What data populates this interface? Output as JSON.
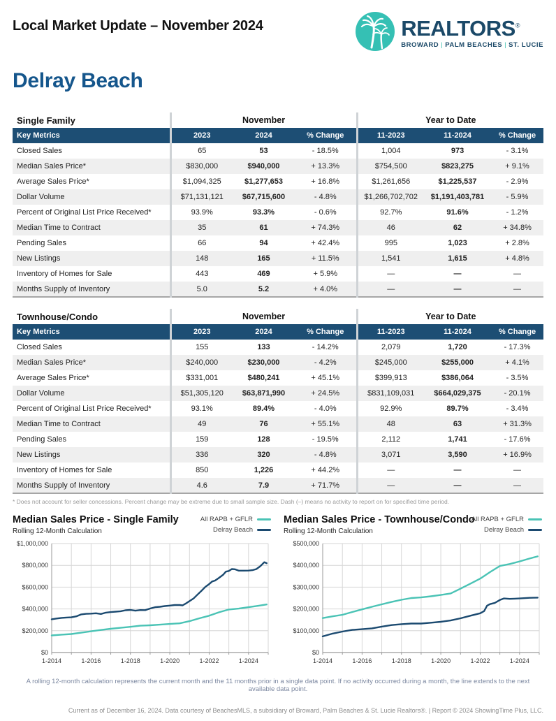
{
  "header": {
    "title": "Local Market Update – November 2024",
    "logo": {
      "brand": "REALTORS",
      "reg_mark": "®",
      "tagline_parts": [
        "BROWARD",
        "PALM BEACHES",
        "ST. LUCIE"
      ],
      "separator": "|",
      "teal": "#35c0b4",
      "navy": "#1b4968"
    }
  },
  "page_title": "Delray Beach",
  "tables": [
    {
      "name": "Single Family",
      "group_headers": {
        "month": "November",
        "ytd": "Year to Date"
      },
      "columns": [
        "Key Metrics",
        "2023",
        "2024",
        "% Change",
        "11-2023",
        "11-2024",
        "% Change"
      ],
      "rows": [
        {
          "label": "Closed Sales",
          "values": [
            "65",
            "53",
            "- 18.5%",
            "1,004",
            "973",
            "- 3.1%"
          ]
        },
        {
          "label": "Median Sales Price*",
          "values": [
            "$830,000",
            "$940,000",
            "+ 13.3%",
            "$754,500",
            "$823,275",
            "+ 9.1%"
          ]
        },
        {
          "label": "Average Sales Price*",
          "values": [
            "$1,094,325",
            "$1,277,653",
            "+ 16.8%",
            "$1,261,656",
            "$1,225,537",
            "- 2.9%"
          ]
        },
        {
          "label": "Dollar Volume",
          "values": [
            "$71,131,121",
            "$67,715,600",
            "- 4.8%",
            "$1,266,702,702",
            "$1,191,403,781",
            "- 5.9%"
          ]
        },
        {
          "label": "Percent of Original List Price Received*",
          "values": [
            "93.9%",
            "93.3%",
            "- 0.6%",
            "92.7%",
            "91.6%",
            "- 1.2%"
          ]
        },
        {
          "label": "Median Time to Contract",
          "values": [
            "35",
            "61",
            "+ 74.3%",
            "46",
            "62",
            "+ 34.8%"
          ]
        },
        {
          "label": "Pending Sales",
          "values": [
            "66",
            "94",
            "+ 42.4%",
            "995",
            "1,023",
            "+ 2.8%"
          ]
        },
        {
          "label": "New Listings",
          "values": [
            "148",
            "165",
            "+ 11.5%",
            "1,541",
            "1,615",
            "+ 4.8%"
          ]
        },
        {
          "label": "Inventory of Homes for Sale",
          "values": [
            "443",
            "469",
            "+ 5.9%",
            "—",
            "—",
            "—"
          ]
        },
        {
          "label": "Months Supply of Inventory",
          "values": [
            "5.0",
            "5.2",
            "+ 4.0%",
            "—",
            "—",
            "—"
          ]
        }
      ]
    },
    {
      "name": "Townhouse/Condo",
      "group_headers": {
        "month": "November",
        "ytd": "Year to Date"
      },
      "columns": [
        "Key Metrics",
        "2023",
        "2024",
        "% Change",
        "11-2023",
        "11-2024",
        "% Change"
      ],
      "rows": [
        {
          "label": "Closed Sales",
          "values": [
            "155",
            "133",
            "- 14.2%",
            "2,079",
            "1,720",
            "- 17.3%"
          ]
        },
        {
          "label": "Median Sales Price*",
          "values": [
            "$240,000",
            "$230,000",
            "- 4.2%",
            "$245,000",
            "$255,000",
            "+ 4.1%"
          ]
        },
        {
          "label": "Average Sales Price*",
          "values": [
            "$331,001",
            "$480,241",
            "+ 45.1%",
            "$399,913",
            "$386,064",
            "- 3.5%"
          ]
        },
        {
          "label": "Dollar Volume",
          "values": [
            "$51,305,120",
            "$63,871,990",
            "+ 24.5%",
            "$831,109,031",
            "$664,029,375",
            "- 20.1%"
          ]
        },
        {
          "label": "Percent of Original List Price Received*",
          "values": [
            "93.1%",
            "89.4%",
            "- 4.0%",
            "92.9%",
            "89.7%",
            "- 3.4%"
          ]
        },
        {
          "label": "Median Time to Contract",
          "values": [
            "49",
            "76",
            "+ 55.1%",
            "48",
            "63",
            "+ 31.3%"
          ]
        },
        {
          "label": "Pending Sales",
          "values": [
            "159",
            "128",
            "- 19.5%",
            "2,112",
            "1,741",
            "- 17.6%"
          ]
        },
        {
          "label": "New Listings",
          "values": [
            "336",
            "320",
            "- 4.8%",
            "3,071",
            "3,590",
            "+ 16.9%"
          ]
        },
        {
          "label": "Inventory of Homes for Sale",
          "values": [
            "850",
            "1,226",
            "+ 44.2%",
            "—",
            "—",
            "—"
          ]
        },
        {
          "label": "Months Supply of Inventory",
          "values": [
            "4.6",
            "7.9",
            "+ 71.7%",
            "—",
            "—",
            "—"
          ]
        }
      ]
    }
  ],
  "table_footnote": "* Does not account for seller concessions. Percent change may be extreme due to small sample size. Dash (–) means no activity to report on for specified time period.",
  "chart_data": [
    {
      "type": "line",
      "title": "Median Sales Price - Single Family",
      "subtitle": "Rolling 12-Month Calculation",
      "xlabel": "",
      "ylabel": "",
      "ylim": [
        0,
        1000000
      ],
      "ytick_step": 200000,
      "xlim": [
        2014,
        2025
      ],
      "xtick_years": [
        2014,
        2016,
        2018,
        2020,
        2022,
        2024
      ],
      "xtick_labels": [
        "1-2014",
        "1-2016",
        "1-2018",
        "1-2020",
        "1-2022",
        "1-2024"
      ],
      "grid": true,
      "legend_position": "top-right",
      "series": [
        {
          "name": "All RAPB + GFLR",
          "color": "#4ac3b5",
          "points": [
            [
              2014.0,
              157000
            ],
            [
              2014.5,
              164000
            ],
            [
              2015.0,
              170000
            ],
            [
              2015.5,
              182000
            ],
            [
              2016.0,
              195000
            ],
            [
              2016.5,
              207000
            ],
            [
              2017.0,
              218000
            ],
            [
              2017.5,
              227000
            ],
            [
              2018.0,
              236000
            ],
            [
              2018.5,
              246000
            ],
            [
              2019.0,
              250000
            ],
            [
              2019.5,
              256000
            ],
            [
              2020.0,
              262000
            ],
            [
              2020.5,
              268000
            ],
            [
              2021.0,
              288000
            ],
            [
              2021.5,
              314000
            ],
            [
              2022.0,
              338000
            ],
            [
              2022.5,
              369000
            ],
            [
              2023.0,
              395000
            ],
            [
              2023.5,
              403000
            ],
            [
              2024.0,
              416000
            ],
            [
              2024.5,
              429000
            ],
            [
              2024.92,
              441000
            ]
          ]
        },
        {
          "name": "Delray Beach",
          "color": "#1b4a70",
          "points": [
            [
              2014.0,
              305000
            ],
            [
              2014.25,
              312000
            ],
            [
              2014.5,
              318000
            ],
            [
              2014.75,
              321000
            ],
            [
              2015.0,
              323000
            ],
            [
              2015.25,
              332000
            ],
            [
              2015.5,
              350000
            ],
            [
              2015.75,
              355000
            ],
            [
              2016.0,
              357000
            ],
            [
              2016.25,
              360000
            ],
            [
              2016.5,
              354000
            ],
            [
              2016.75,
              366000
            ],
            [
              2017.0,
              371000
            ],
            [
              2017.25,
              375000
            ],
            [
              2017.5,
              379000
            ],
            [
              2017.75,
              388000
            ],
            [
              2018.0,
              391000
            ],
            [
              2018.25,
              384000
            ],
            [
              2018.5,
              390000
            ],
            [
              2018.75,
              389000
            ],
            [
              2019.0,
              404000
            ],
            [
              2019.25,
              416000
            ],
            [
              2019.5,
              420000
            ],
            [
              2019.75,
              426000
            ],
            [
              2020.0,
              431000
            ],
            [
              2020.25,
              436000
            ],
            [
              2020.5,
              436000
            ],
            [
              2020.65,
              433000
            ],
            [
              2020.8,
              448000
            ],
            [
              2021.0,
              472000
            ],
            [
              2021.2,
              495000
            ],
            [
              2021.4,
              530000
            ],
            [
              2021.6,
              565000
            ],
            [
              2021.8,
              601000
            ],
            [
              2022.0,
              628000
            ],
            [
              2022.15,
              652000
            ],
            [
              2022.3,
              660000
            ],
            [
              2022.5,
              685000
            ],
            [
              2022.7,
              712000
            ],
            [
              2022.85,
              742000
            ],
            [
              2023.0,
              748000
            ],
            [
              2023.15,
              766000
            ],
            [
              2023.3,
              764000
            ],
            [
              2023.5,
              751000
            ],
            [
              2023.75,
              751000
            ],
            [
              2024.0,
              752000
            ],
            [
              2024.2,
              756000
            ],
            [
              2024.4,
              766000
            ],
            [
              2024.6,
              792000
            ],
            [
              2024.8,
              829000
            ],
            [
              2024.92,
              820000
            ]
          ]
        }
      ]
    },
    {
      "type": "line",
      "title": "Median Sales Price - Townhouse/Condo",
      "subtitle": "Rolling 12-Month Calculation",
      "xlabel": "",
      "ylabel": "",
      "ylim": [
        0,
        500000
      ],
      "ytick_step": 100000,
      "xlim": [
        2014,
        2025
      ],
      "xtick_years": [
        2014,
        2016,
        2018,
        2020,
        2022,
        2024
      ],
      "xtick_labels": [
        "1-2014",
        "1-2016",
        "1-2018",
        "1-2020",
        "1-2022",
        "1-2024"
      ],
      "grid": true,
      "legend_position": "top-right",
      "series": [
        {
          "name": "All RAPB + GFLR",
          "color": "#4ac3b5",
          "points": [
            [
              2014.0,
              158000
            ],
            [
              2014.5,
              166000
            ],
            [
              2015.0,
              173000
            ],
            [
              2015.5,
              186000
            ],
            [
              2016.0,
              198000
            ],
            [
              2016.5,
              210000
            ],
            [
              2017.0,
              221000
            ],
            [
              2017.5,
              232000
            ],
            [
              2018.0,
              242000
            ],
            [
              2018.5,
              250000
            ],
            [
              2019.0,
              253000
            ],
            [
              2019.5,
              258000
            ],
            [
              2020.0,
              264000
            ],
            [
              2020.5,
              271000
            ],
            [
              2021.0,
              293000
            ],
            [
              2021.5,
              316000
            ],
            [
              2022.0,
              339000
            ],
            [
              2022.5,
              369000
            ],
            [
              2023.0,
              397000
            ],
            [
              2023.5,
              406000
            ],
            [
              2024.0,
              418000
            ],
            [
              2024.5,
              431000
            ],
            [
              2024.92,
              441000
            ]
          ]
        },
        {
          "name": "Delray Beach",
          "color": "#1b4a70",
          "points": [
            [
              2014.0,
              74000
            ],
            [
              2014.5,
              87000
            ],
            [
              2015.0,
              96000
            ],
            [
              2015.5,
              104000
            ],
            [
              2016.0,
              107000
            ],
            [
              2016.5,
              111000
            ],
            [
              2017.0,
              119000
            ],
            [
              2017.5,
              126000
            ],
            [
              2018.0,
              130000
            ],
            [
              2018.5,
              133000
            ],
            [
              2019.0,
              133000
            ],
            [
              2019.5,
              137000
            ],
            [
              2020.0,
              141000
            ],
            [
              2020.5,
              147000
            ],
            [
              2021.0,
              157000
            ],
            [
              2021.5,
              169000
            ],
            [
              2022.0,
              180000
            ],
            [
              2022.2,
              190000
            ],
            [
              2022.35,
              215000
            ],
            [
              2022.5,
              222000
            ],
            [
              2022.75,
              228000
            ],
            [
              2023.0,
              241000
            ],
            [
              2023.2,
              248000
            ],
            [
              2023.5,
              246000
            ],
            [
              2023.75,
              247000
            ],
            [
              2024.0,
              248000
            ],
            [
              2024.5,
              251000
            ],
            [
              2024.92,
              252000
            ]
          ]
        }
      ]
    }
  ],
  "chart_note": "A rolling 12-month calculation represents the current month and the 11 months prior in a single data point. If no activity occurred during a month, the line extends to the next available data point.",
  "footer": "Current as of December 16, 2024. Data courtesy of BeachesMLS, a subsidiary of Broward, Palm Beaches & St. Lucie Realtors®. | Report © 2024 ShowingTime Plus, LLC."
}
